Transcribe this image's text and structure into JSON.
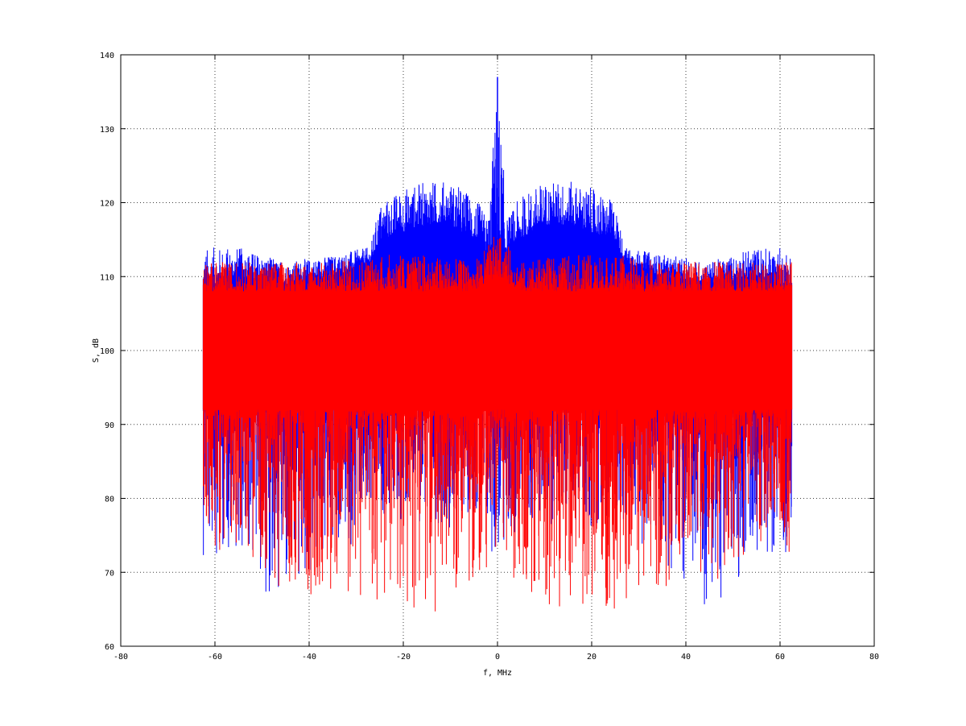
{
  "chart_data": {
    "type": "line",
    "title": "",
    "xlabel": "f, MHz",
    "ylabel": "S, dB",
    "xlim": [
      -80,
      80
    ],
    "ylim": [
      60,
      140
    ],
    "xticks": [
      -80,
      -60,
      -40,
      -20,
      0,
      20,
      40,
      60,
      80
    ],
    "yticks": [
      60,
      70,
      80,
      90,
      100,
      110,
      120,
      130,
      140
    ],
    "grid": true,
    "legend": "none",
    "x_range_of_data": [
      -62.5,
      62.5
    ],
    "series": [
      {
        "color": "#0000ff",
        "style": "dense noisy spectrum",
        "envelope": {
          "x": [
            -62.5,
            -55,
            -45,
            -35,
            -27,
            -25,
            -20,
            -15,
            -10,
            -5,
            -2,
            0,
            2,
            5,
            10,
            15,
            20,
            25,
            27,
            35,
            45,
            55,
            62.5
          ],
          "upper": [
            114,
            114,
            112,
            113,
            114,
            120,
            122,
            123,
            123,
            121,
            118,
            137,
            118,
            121,
            123,
            123,
            122,
            120,
            114,
            113,
            112,
            114,
            114
          ],
          "typical_high": [
            108,
            110,
            109,
            110,
            112,
            115,
            116,
            117,
            117,
            115,
            113,
            115,
            113,
            115,
            117,
            117,
            116,
            115,
            112,
            110,
            109,
            110,
            108
          ],
          "typical_low": [
            92,
            92,
            92,
            92,
            92,
            93,
            94,
            94,
            94,
            93,
            92,
            92,
            92,
            93,
            94,
            94,
            94,
            93,
            92,
            92,
            92,
            92,
            92
          ],
          "lower": [
            72,
            73,
            63,
            72,
            75,
            78,
            76,
            77,
            76,
            78,
            71,
            71,
            71,
            78,
            76,
            77,
            76,
            78,
            75,
            72,
            63,
            73,
            72
          ]
        },
        "peak": {
          "x": 0,
          "y": 137
        }
      },
      {
        "color": "#ff0000",
        "style": "dense noisy spectrum",
        "envelope": {
          "x": [
            -62.5,
            -55,
            -45,
            -35,
            -25,
            -15,
            -5,
            0,
            5,
            15,
            25,
            35,
            45,
            55,
            62.5
          ],
          "upper": [
            112,
            112,
            112,
            112,
            113,
            113,
            112,
            116,
            112,
            113,
            113,
            112,
            112,
            112,
            112
          ],
          "typical_high": [
            108,
            108,
            108,
            108,
            108,
            108,
            108,
            110,
            108,
            108,
            108,
            108,
            108,
            108,
            108
          ],
          "typical_low": [
            92,
            92,
            92,
            92,
            92,
            92,
            92,
            92,
            92,
            92,
            92,
            92,
            92,
            92,
            92
          ],
          "lower": [
            72,
            74,
            66,
            67,
            65,
            64,
            68,
            72,
            68,
            64,
            65,
            67,
            66,
            74,
            72
          ]
        }
      }
    ]
  }
}
